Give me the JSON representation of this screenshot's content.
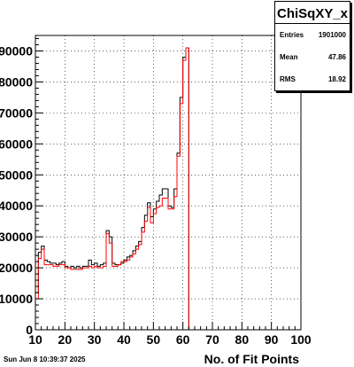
{
  "stats": {
    "title": "ChiSqXY_x",
    "entries_label": "Entries",
    "entries_value": "1901000",
    "mean_label": "Mean",
    "mean_value": "47.86",
    "rms_label": "RMS",
    "rms_value": "18.92"
  },
  "footer": {
    "timestamp": "Sun Jun  8 10:39:37 2025"
  },
  "colors": {
    "series_black": "#000000",
    "series_red": "#ff0000",
    "grid": "#000000"
  },
  "chart_data": {
    "type": "step",
    "title": "ChiSqXY_x",
    "xlabel": "No. of Fit Points",
    "ylabel": "",
    "xlim": [
      10,
      100
    ],
    "ylim": [
      0,
      95000
    ],
    "x_ticks": [
      10,
      20,
      30,
      40,
      50,
      60,
      70,
      80,
      90,
      100
    ],
    "y_ticks": [
      0,
      10000,
      20000,
      30000,
      40000,
      50000,
      60000,
      70000,
      80000,
      90000
    ],
    "grid": true,
    "bin_edges": [
      10,
      11,
      12,
      13,
      14,
      15,
      16,
      17,
      18,
      19,
      20,
      21,
      22,
      23,
      24,
      25,
      26,
      27,
      28,
      29,
      30,
      31,
      32,
      33,
      34,
      35,
      36,
      37,
      38,
      39,
      40,
      41,
      42,
      43,
      44,
      45,
      46,
      47,
      48,
      49,
      50,
      51,
      52,
      53,
      54,
      55,
      56,
      57,
      58,
      59,
      60,
      61,
      62,
      63,
      64,
      65,
      66,
      67,
      68,
      69,
      70,
      71,
      72,
      73,
      74,
      75,
      76,
      77,
      78,
      79,
      80,
      81,
      82,
      83,
      84,
      85,
      86,
      87,
      88,
      89,
      90,
      91,
      92,
      93,
      94,
      95,
      96,
      97,
      98,
      99,
      100
    ],
    "series": [
      {
        "color": "black",
        "values": [
          12000,
          25000,
          27000,
          22500,
          22000,
          21500,
          21500,
          21000,
          21500,
          22000,
          20500,
          20000,
          20500,
          20000,
          20500,
          20000,
          20500,
          20500,
          22500,
          21000,
          21500,
          20500,
          21000,
          21500,
          32000,
          30000,
          21500,
          21000,
          21000,
          21500,
          22500,
          23500,
          24000,
          25500,
          27000,
          28500,
          33000,
          37000,
          41000,
          36500,
          39000,
          41500,
          43500,
          45500,
          45500,
          40000,
          39500,
          45500,
          57000,
          75000,
          88000,
          91000,
          0,
          0,
          0,
          0,
          0,
          0,
          0,
          0,
          0,
          0,
          0,
          0,
          0,
          0,
          0,
          0,
          0,
          0,
          0,
          0,
          0,
          0,
          0,
          0,
          0,
          0,
          0,
          0,
          0,
          0,
          0,
          0,
          0,
          0,
          0,
          0,
          0,
          0
        ]
      },
      {
        "color": "red",
        "values": [
          10000,
          23000,
          26000,
          21000,
          21000,
          21000,
          20500,
          20500,
          21000,
          21000,
          20000,
          20000,
          19500,
          19500,
          19500,
          19500,
          20000,
          20000,
          20500,
          20000,
          20500,
          20000,
          20000,
          20500,
          31000,
          28000,
          20500,
          20500,
          21000,
          22000,
          22000,
          22500,
          23500,
          24500,
          26000,
          27500,
          31500,
          35000,
          39500,
          34500,
          37500,
          39500,
          40000,
          42500,
          42500,
          39000,
          39000,
          43000,
          56000,
          73000,
          87000,
          91000,
          0,
          0,
          0,
          0,
          0,
          0,
          0,
          0,
          0,
          0,
          0,
          0,
          0,
          0,
          0,
          0,
          0,
          0,
          0,
          0,
          0,
          0,
          0,
          0,
          0,
          0,
          0,
          0,
          0,
          0,
          0,
          0,
          0,
          0,
          0,
          0,
          0,
          0
        ]
      }
    ]
  }
}
